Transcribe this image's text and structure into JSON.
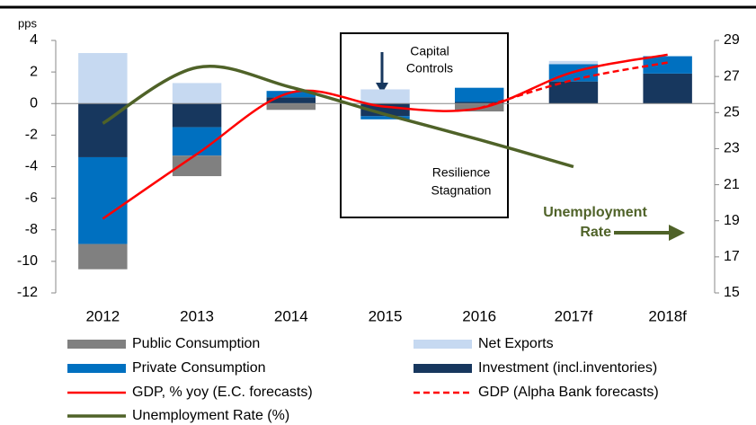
{
  "chart_data": {
    "type": "bar",
    "y_label": "pps",
    "categories": [
      "2012",
      "2013",
      "2014",
      "2015",
      "2016",
      "2017f",
      "2018f"
    ],
    "series": [
      {
        "name": "Public Consumption",
        "type": "bar",
        "color": "#808080",
        "values": [
          -1.6,
          -1.3,
          -0.4,
          0,
          -0.5,
          0,
          0
        ]
      },
      {
        "name": "Net Exports",
        "type": "bar",
        "color": "#c6d9f1",
        "values": [
          3.2,
          1.3,
          0,
          0.9,
          0,
          0.2,
          0
        ]
      },
      {
        "name": "Private Consumption",
        "type": "bar",
        "color": "#0070c0",
        "values": [
          -5.5,
          -1.8,
          0.4,
          -0.2,
          0.9,
          1.1,
          1.1
        ]
      },
      {
        "name": "Investment (incl.inventories)",
        "type": "bar",
        "color": "#17375e",
        "values": [
          -3.4,
          -1.5,
          0.4,
          -0.8,
          0.1,
          1.4,
          1.9
        ]
      },
      {
        "name": "GDP, % yoy (E.C. forecasts)",
        "type": "line",
        "color": "#ff0000",
        "values": [
          -7.3,
          -3.2,
          0.7,
          -0.2,
          -0.3,
          2.0,
          3.1
        ]
      },
      {
        "name": "GDP (Alpha Bank forecasts)",
        "type": "line",
        "dashed": true,
        "color": "#ff0000",
        "values": [
          null,
          null,
          null,
          null,
          -0.3,
          1.5,
          2.6
        ]
      },
      {
        "name": "Unemployment Rate (%)",
        "type": "line",
        "axis": "y2",
        "color": "#4f6228",
        "values": [
          24.4,
          27.5,
          26.4,
          24.9,
          23.5,
          22.0,
          null
        ]
      }
    ],
    "ylim": [
      -12,
      4
    ],
    "yticks": [
      -12,
      -10,
      -8,
      -6,
      -4,
      -2,
      0,
      2,
      4
    ],
    "y2lim": [
      15,
      29
    ],
    "y2ticks": [
      15,
      17,
      19,
      21,
      23,
      25,
      27,
      29
    ],
    "annotations": [
      {
        "lines": [
          "Capital",
          "Controls"
        ]
      },
      {
        "lines": [
          "Resilience",
          "Stagnation"
        ]
      },
      {
        "lines": [
          "Unemployment",
          "Rate"
        ]
      }
    ]
  }
}
